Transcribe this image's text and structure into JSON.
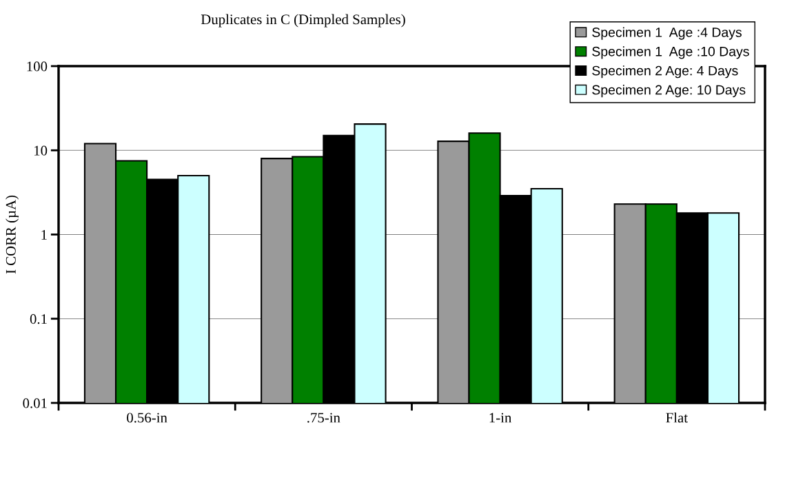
{
  "chart_data": {
    "type": "bar",
    "title": "Duplicates in C (Dimpled Samples)",
    "ylabel": "I CORR (µA)",
    "categories": [
      "0.56-in",
      ".75-in",
      "1-in",
      "Flat"
    ],
    "series": [
      {
        "name": "Specimen 1  Age :4 Days",
        "color": "#9a9a9a",
        "values": [
          12,
          8,
          12.8,
          2.3
        ]
      },
      {
        "name": "Specimen 1  Age :10 Days",
        "color": "#008000",
        "values": [
          7.5,
          8.4,
          16,
          2.3
        ]
      },
      {
        "name": "Specimen 2 Age: 4 Days",
        "color": "#000000",
        "values": [
          4.5,
          15,
          2.9,
          1.8
        ]
      },
      {
        "name": "Specimen 2 Age: 10 Days",
        "color": "#ccffff",
        "values": [
          5,
          20.5,
          3.5,
          1.8
        ]
      }
    ],
    "log": "y",
    "ylim": [
      0.01,
      100
    ],
    "yticks": [
      0.01,
      0.1,
      1,
      10,
      100
    ],
    "grid": "y",
    "legend": "top right"
  }
}
